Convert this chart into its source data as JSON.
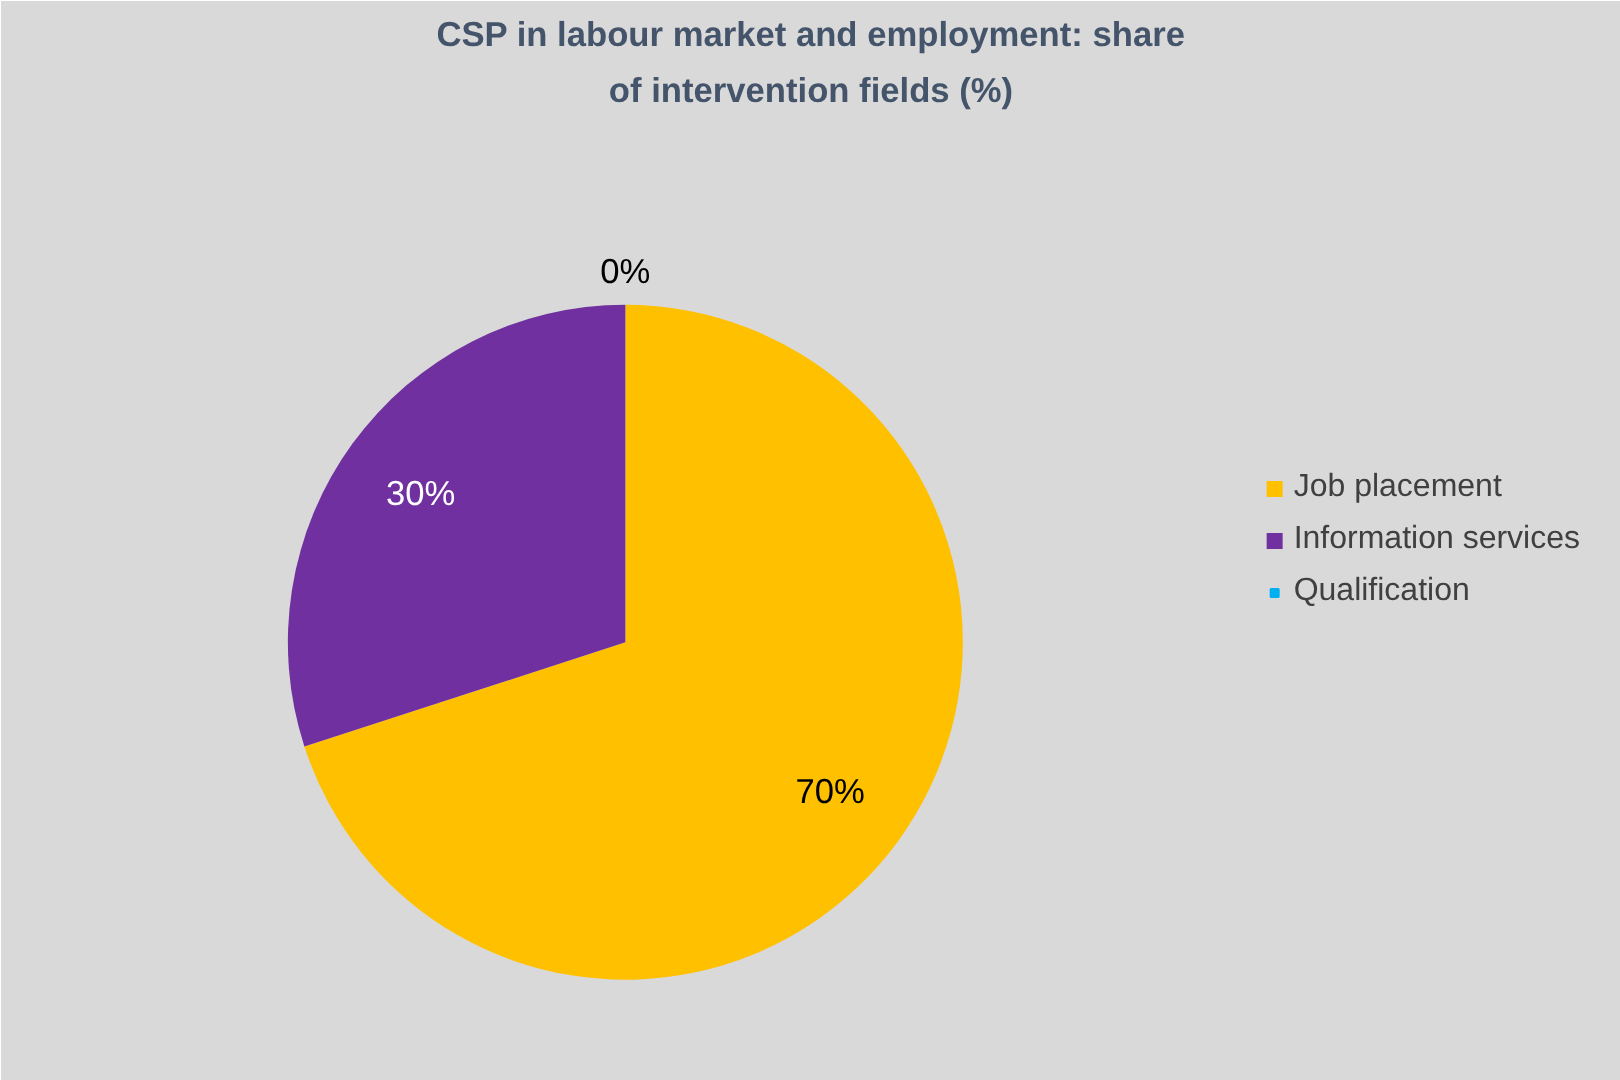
{
  "chart_data": {
    "type": "pie",
    "title": "CSP in labour market and employment: share of intervention fields (%)",
    "categories": [
      "Job placement",
      "Information services",
      "Qualification"
    ],
    "values": [
      70,
      30,
      0
    ],
    "colors": [
      "#ffc000",
      "#7030a0",
      "#00b0f0"
    ],
    "value_labels": [
      "70%",
      "30%",
      "0%"
    ],
    "legend": "right"
  }
}
